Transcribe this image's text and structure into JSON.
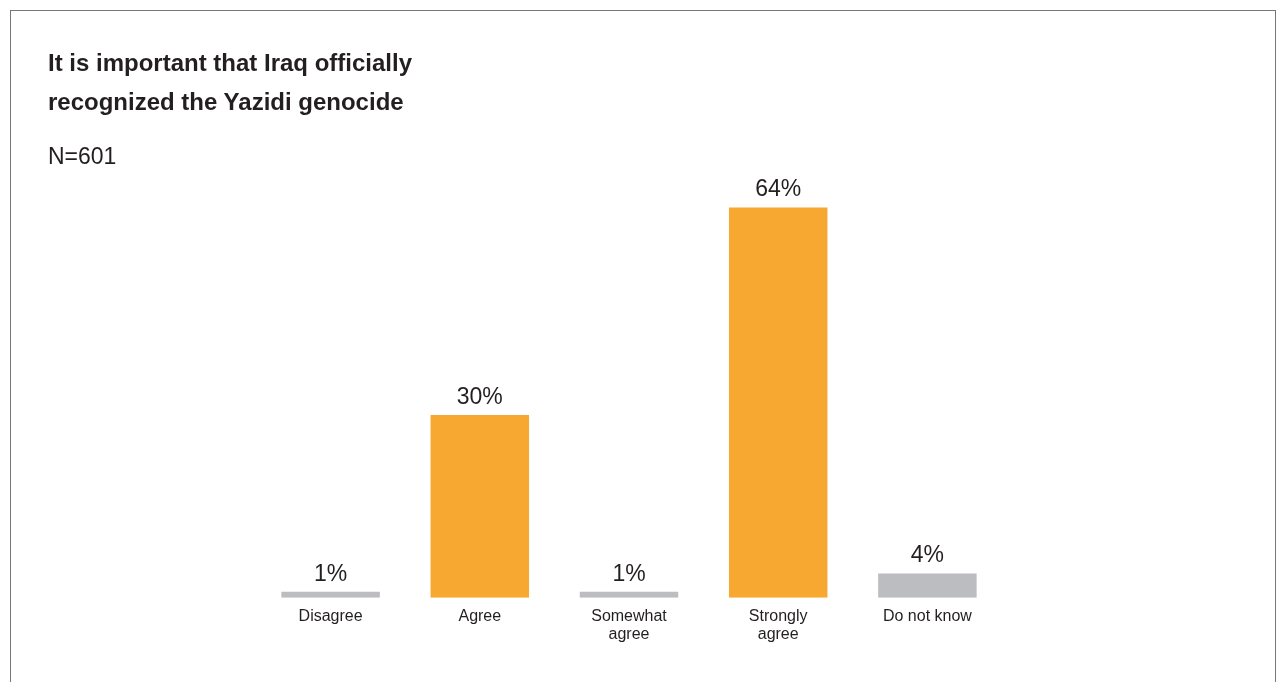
{
  "chart_data": {
    "type": "bar",
    "title": "It is important that Iraq officially recognized the Yazidi genocide",
    "subtitle": "N=601",
    "categories": [
      "Disagree",
      "Agree",
      "Somewhat agree",
      "Strongly agree",
      "Do not know"
    ],
    "values": [
      1,
      30,
      1,
      64,
      4
    ],
    "colors": [
      "#bcbdc0",
      "#f7a830",
      "#bcbdc0",
      "#f7a830",
      "#bcbdc0"
    ],
    "data_labels": true,
    "value_labels": [
      "1%",
      "30%",
      "1%",
      "64%",
      "4%"
    ],
    "grid": false,
    "legend": false
  }
}
